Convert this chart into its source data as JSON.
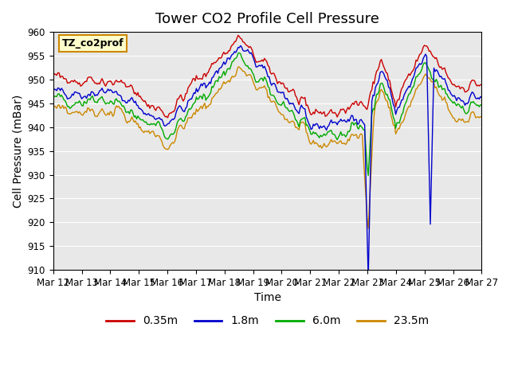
{
  "title": "Tower CO2 Profile Cell Pressure",
  "xlabel": "Time",
  "ylabel": "Cell Pressure (mBar)",
  "ylim": [
    910,
    960
  ],
  "yticks": [
    910,
    915,
    920,
    925,
    930,
    935,
    940,
    945,
    950,
    955,
    960
  ],
  "x_labels": [
    "Mar 12",
    "Mar 13",
    "Mar 14",
    "Mar 15",
    "Mar 16",
    "Mar 17",
    "Mar 18",
    "Mar 19",
    "Mar 20",
    "Mar 21",
    "Mar 22",
    "Mar 23",
    "Mar 24",
    "Mar 25",
    "Mar 26",
    "Mar 27"
  ],
  "colors": {
    "0.35m": "#cc0000",
    "1.8m": "#0000cc",
    "6.0m": "#00aa00",
    "23.5m": "#cc8800"
  },
  "legend_labels": [
    "0.35m",
    "1.8m",
    "6.0m",
    "23.5m"
  ],
  "bg_color": "#e8e8e8",
  "annotation_box_color": "#ffffcc",
  "annotation_text": "TZ_co2prof",
  "title_fontsize": 13,
  "axis_label_fontsize": 10,
  "tick_fontsize": 8.5,
  "n_points": 360,
  "n_days": 15
}
